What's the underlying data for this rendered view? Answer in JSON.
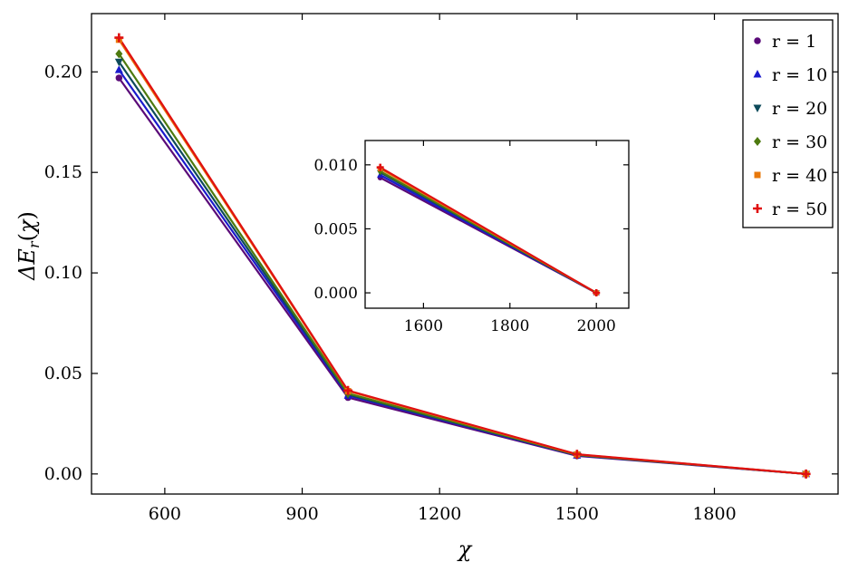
{
  "chart_data": [
    {
      "type": "line",
      "xlabel": "χ",
      "ylabel": "ΔE_r(χ)",
      "xlim": [
        440,
        2070
      ],
      "ylim": [
        -0.01,
        0.229
      ],
      "xticks": [
        600,
        900,
        1200,
        1500,
        1800
      ],
      "xtick_labels": [
        "600",
        "900",
        "1200",
        "1500",
        "1800"
      ],
      "yticks": [
        0.0,
        0.05,
        0.1,
        0.15,
        0.2
      ],
      "ytick_labels": [
        "0.00",
        "0.05",
        "0.10",
        "0.15",
        "0.20"
      ],
      "grid": false,
      "legend": "top-right",
      "x": [
        500,
        1000,
        1500,
        2000
      ],
      "series": [
        {
          "name": "r = 1",
          "marker": "circle",
          "color": "#5a0a78",
          "values": [
            0.197,
            0.038,
            0.009,
            0.0
          ]
        },
        {
          "name": "r = 10",
          "marker": "triangle-up",
          "color": "#1a1acc",
          "values": [
            0.201,
            0.039,
            0.0092,
            0.0
          ]
        },
        {
          "name": "r = 20",
          "marker": "triangle-down",
          "color": "#0d4a5a",
          "values": [
            0.205,
            0.0395,
            0.0094,
            0.0
          ]
        },
        {
          "name": "r = 30",
          "marker": "diamond",
          "color": "#4d7a0f",
          "values": [
            0.209,
            0.04,
            0.0095,
            0.0
          ]
        },
        {
          "name": "r = 40",
          "marker": "square",
          "color": "#e8780a",
          "values": [
            0.216,
            0.0412,
            0.0097,
            0.0
          ]
        },
        {
          "name": "r = 50",
          "marker": "plus",
          "color": "#e01010",
          "values": [
            0.217,
            0.0415,
            0.0098,
            0.0
          ]
        }
      ]
    },
    {
      "type": "line",
      "xlim": [
        1465,
        2075
      ],
      "ylim": [
        -0.0012,
        0.0119
      ],
      "xticks": [
        1600,
        1800,
        2000
      ],
      "xtick_labels": [
        "1600",
        "1800",
        "2000"
      ],
      "yticks": [
        0.0,
        0.005,
        0.01
      ],
      "ytick_labels": [
        "0.000",
        "0.005",
        "0.010"
      ],
      "grid": false,
      "x": [
        1500,
        2000
      ],
      "series": [
        {
          "marker": "circle",
          "color": "#5a0a78",
          "values": [
            0.009,
            0.0
          ]
        },
        {
          "marker": "triangle-up",
          "color": "#1a1acc",
          "values": [
            0.0092,
            0.0
          ]
        },
        {
          "marker": "triangle-down",
          "color": "#0d4a5a",
          "values": [
            0.0094,
            0.0
          ]
        },
        {
          "marker": "diamond",
          "color": "#4d7a0f",
          "values": [
            0.0095,
            0.0
          ]
        },
        {
          "marker": "square",
          "color": "#e8780a",
          "values": [
            0.0097,
            0.0
          ]
        },
        {
          "marker": "plus",
          "color": "#e01010",
          "values": [
            0.0098,
            0.0
          ]
        }
      ]
    }
  ]
}
